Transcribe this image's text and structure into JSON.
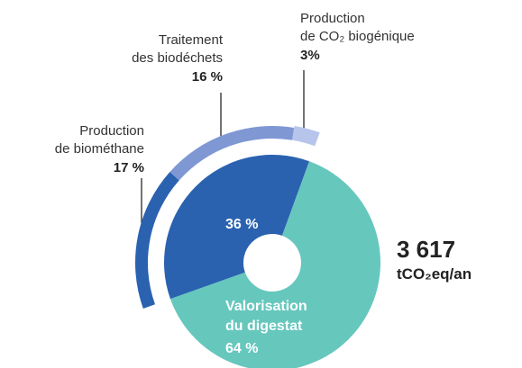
{
  "chart_data": {
    "type": "donut",
    "inner": {
      "categories": [
        null,
        "Valorisation du digestat"
      ],
      "values": [
        36,
        64
      ],
      "value_labels": [
        "36 %",
        "64 %"
      ],
      "colors": [
        "#2a62b0",
        "#66c7bd"
      ]
    },
    "outer": {
      "categories": [
        "Production de biométhane",
        "Traitement des biodéchets",
        "Production de CO₂ biogénique"
      ],
      "values": [
        17,
        16,
        3
      ],
      "value_labels": [
        "17 %",
        "16 %",
        "3%"
      ],
      "colors": [
        "#2a62b0",
        "#7f98d4",
        "#b7c5ec"
      ]
    },
    "total": "3 617",
    "total_unit": "tCO₂eq/an"
  }
}
